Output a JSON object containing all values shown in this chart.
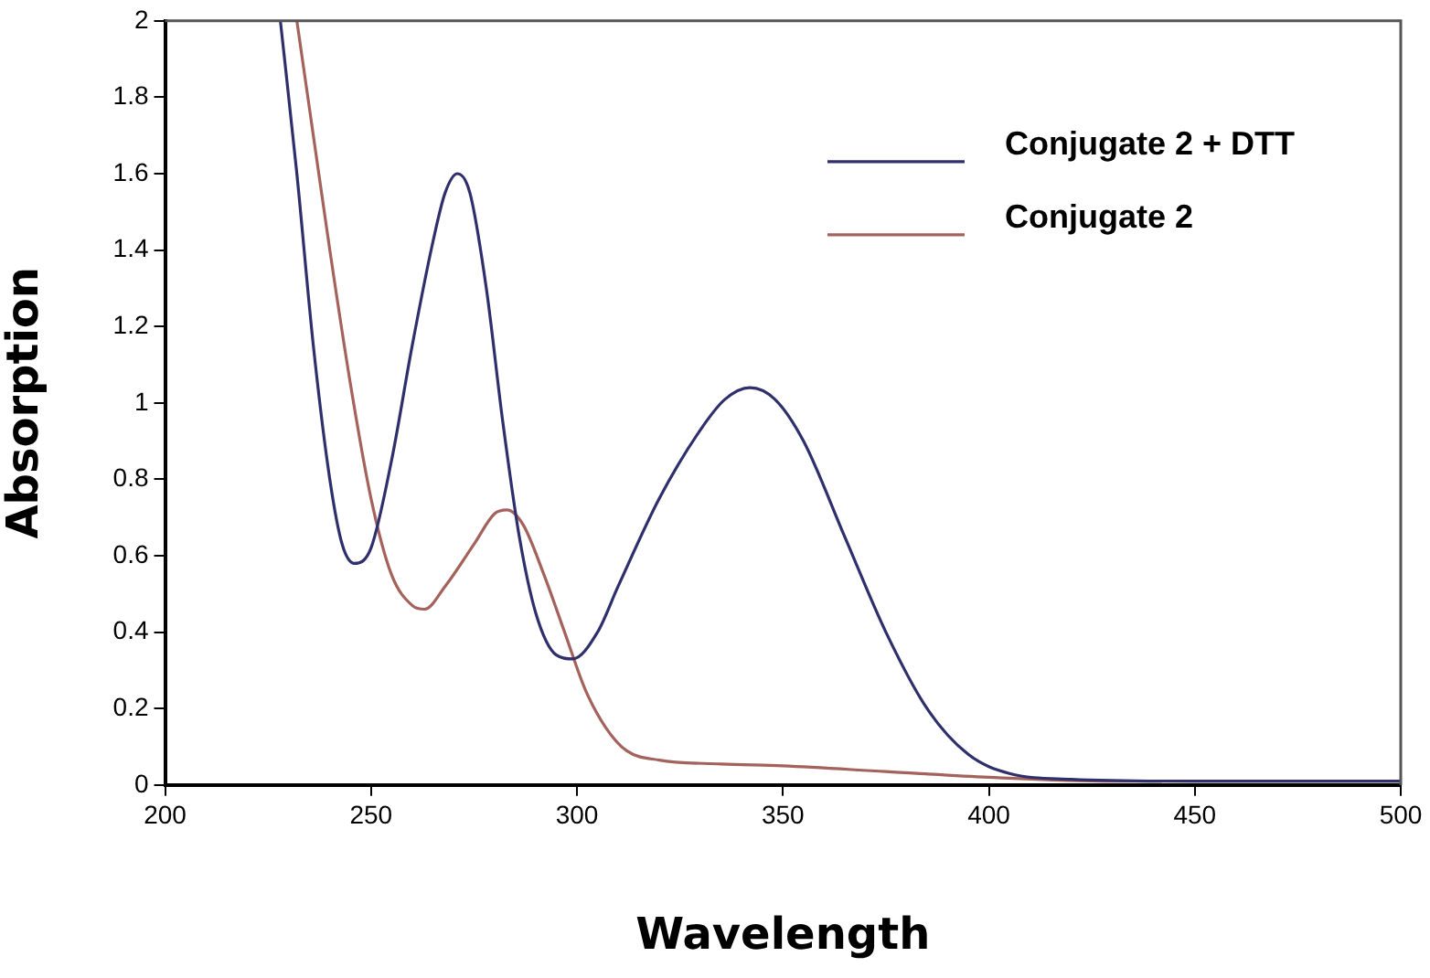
{
  "chart_data": {
    "type": "line",
    "xlabel": "Wavelength",
    "ylabel": "Absorption",
    "xlim": [
      200,
      500
    ],
    "ylim": [
      0,
      2
    ],
    "xticks": [
      200,
      250,
      300,
      350,
      400,
      450,
      500
    ],
    "yticks": [
      0,
      0.2,
      0.4,
      0.6,
      0.8,
      1,
      1.2,
      1.4,
      1.6,
      1.8,
      2
    ],
    "grid": false,
    "legend": "top right",
    "marker": "none",
    "line_style": "solid",
    "series": [
      {
        "name": "Conjugate 2 + DTT",
        "color": "#2e2f6b",
        "x": [
          228,
          232,
          236,
          240,
          243,
          246,
          250,
          255,
          260,
          265,
          268,
          271,
          274,
          278,
          282,
          286,
          290,
          295,
          299,
          305,
          310,
          320,
          330,
          336,
          342,
          348,
          355,
          365,
          375,
          385,
          395,
          405,
          420,
          450,
          500
        ],
        "values": [
          2,
          1.6,
          1.15,
          0.8,
          0.63,
          0.58,
          0.62,
          0.85,
          1.15,
          1.42,
          1.55,
          1.6,
          1.55,
          1.3,
          0.95,
          0.65,
          0.45,
          0.34,
          0.33,
          0.4,
          0.52,
          0.75,
          0.93,
          1.01,
          1.04,
          1.01,
          0.9,
          0.65,
          0.4,
          0.2,
          0.08,
          0.03,
          0.015,
          0.01,
          0.01
        ]
      },
      {
        "name": "Conjugate 2",
        "color": "#a4625c",
        "x": [
          232,
          236,
          240,
          245,
          250,
          255,
          260,
          263,
          268,
          275,
          280,
          283,
          287,
          292,
          297,
          302,
          307,
          312,
          320,
          335,
          350,
          375,
          400,
          430,
          500
        ],
        "values": [
          2,
          1.7,
          1.4,
          1.05,
          0.75,
          0.55,
          0.47,
          0.46,
          0.52,
          0.63,
          0.71,
          0.72,
          0.68,
          0.55,
          0.4,
          0.25,
          0.15,
          0.09,
          0.065,
          0.055,
          0.05,
          0.035,
          0.02,
          0.01,
          0.01
        ]
      }
    ]
  }
}
